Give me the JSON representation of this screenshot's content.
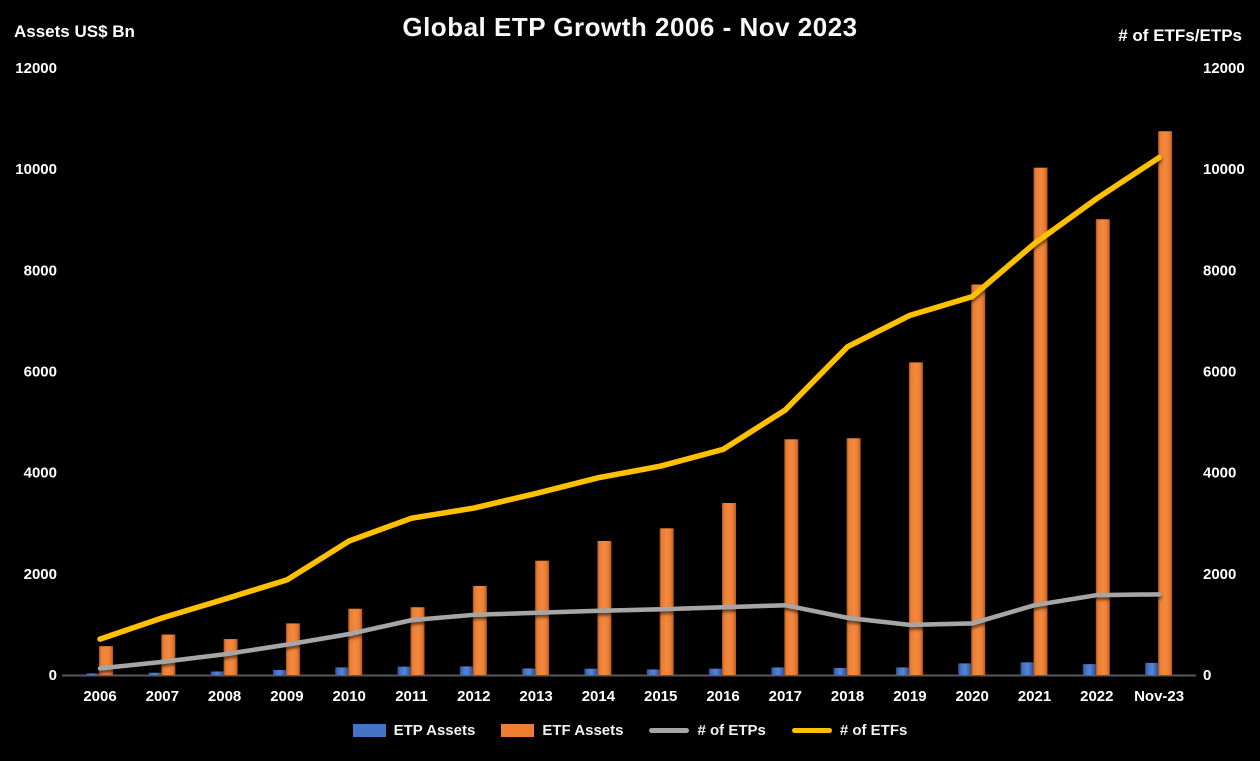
{
  "header": {
    "title": "Global ETP Growth 2006 - Nov 2023",
    "left_axis_unit": "Assets US$ Bn",
    "right_axis_unit": "# of ETFs/ETPs"
  },
  "chart_data": {
    "type": "bar",
    "subtype": "combo-bar-line-dual-axis",
    "title": "Global ETP Growth 2006 - Nov 2023",
    "background": "#000000",
    "grid": false,
    "legend_position": "bottom",
    "left_axis": {
      "label": "Assets US$ Bn",
      "min": 0,
      "max": 12000,
      "tick_step": 2000,
      "ticks": [
        0,
        2000,
        4000,
        6000,
        8000,
        10000,
        12000
      ]
    },
    "right_axis": {
      "label": "# of ETFs/ETPs",
      "min": 0,
      "max": 12000,
      "tick_step": 2000,
      "ticks": [
        0,
        2000,
        4000,
        6000,
        8000,
        10000,
        12000
      ]
    },
    "categories": [
      "2006",
      "2007",
      "2008",
      "2009",
      "2010",
      "2011",
      "2012",
      "2013",
      "2014",
      "2015",
      "2016",
      "2017",
      "2018",
      "2019",
      "2020",
      "2021",
      "2022",
      "Nov-23"
    ],
    "series": [
      {
        "name": "ETP Assets",
        "type": "bar",
        "axis": "left",
        "color": "#4472C4",
        "values": [
          30,
          45,
          70,
          100,
          150,
          165,
          170,
          130,
          125,
          110,
          125,
          150,
          140,
          150,
          230,
          250,
          215,
          240
        ]
      },
      {
        "name": "ETF Assets",
        "type": "bar",
        "axis": "left",
        "color": "#ED7D31",
        "values": [
          570,
          800,
          710,
          1020,
          1310,
          1340,
          1760,
          2260,
          2650,
          2900,
          3400,
          4660,
          4680,
          6180,
          7720,
          10030,
          9010,
          10750
        ]
      },
      {
        "name": "# of ETPs",
        "type": "line",
        "axis": "right",
        "color": "#A6A6A6",
        "values": [
          130,
          260,
          410,
          600,
          810,
          1085,
          1190,
          1230,
          1270,
          1300,
          1340,
          1380,
          1130,
          990,
          1020,
          1380,
          1580,
          1595
        ]
      },
      {
        "name": "# of ETFs",
        "type": "line",
        "axis": "right",
        "color": "#FFC000",
        "values": [
          710,
          1130,
          1500,
          1880,
          2650,
          3100,
          3300,
          3590,
          3900,
          4130,
          4460,
          5240,
          6490,
          7110,
          7480,
          8530,
          9420,
          10230
        ]
      }
    ],
    "colors": {
      "axis_line": "#595959",
      "text": "#ffffff"
    }
  },
  "legend": {
    "items": [
      {
        "label": "ETP Assets",
        "swatch": "bar",
        "color": "#4472C4"
      },
      {
        "label": "ETF Assets",
        "swatch": "bar",
        "color": "#ED7D31"
      },
      {
        "label": "# of ETPs",
        "swatch": "line",
        "color": "#A6A6A6"
      },
      {
        "label": "# of ETFs",
        "swatch": "line",
        "color": "#FFC000"
      }
    ]
  }
}
